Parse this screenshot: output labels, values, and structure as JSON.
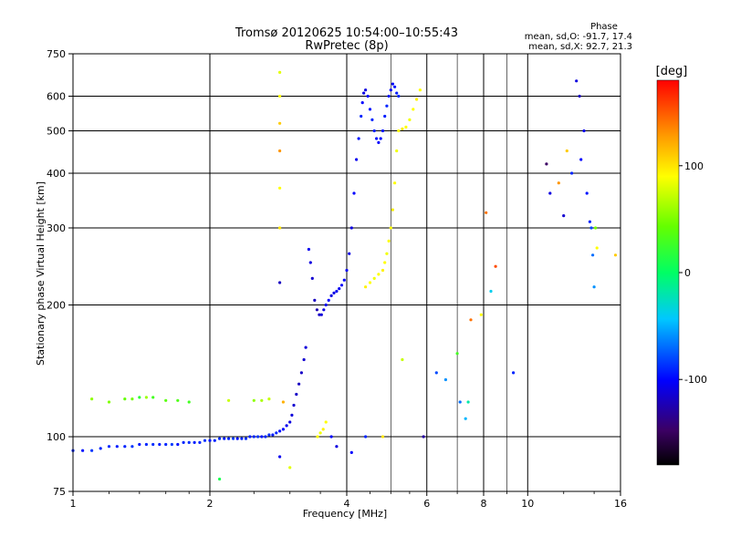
{
  "chart_data": {
    "type": "scatter",
    "title": "Tromsø 20120625 10:54:00–10:55:43",
    "subtitle": "RwPretec (8p)",
    "xlabel": "Frequency [MHz]",
    "ylabel": "Stationary phase Virtual Height [km]",
    "x_scale": "log",
    "y_scale": "log",
    "xlim": [
      1,
      16
    ],
    "ylim": [
      75,
      750
    ],
    "x_ticks": [
      1,
      2,
      4,
      6,
      8,
      10,
      16
    ],
    "y_ticks": [
      75,
      100,
      200,
      300,
      400,
      500,
      600,
      750
    ],
    "x_tick_labels": [
      "1",
      "2",
      "4",
      "6",
      "8",
      "10",
      "16"
    ],
    "y_tick_labels": [
      "75",
      "100",
      "200",
      "300",
      "400",
      "500",
      "600",
      "750"
    ],
    "grid": true,
    "phase_stats": {
      "heading": "Phase",
      "line_o": "mean, sd,O: -91.7, 17.4",
      "line_x": "mean, sd,X:  92.7, 21.3"
    },
    "colorbar": {
      "label": "[deg]",
      "range": [
        -180,
        180
      ],
      "ticks": [
        100,
        0,
        -100
      ],
      "tick_labels": [
        "100",
        "0",
        "-100"
      ],
      "colormap": "rainbow"
    },
    "traces": [
      {
        "x": [
          1.0,
          1.05,
          1.1,
          1.15,
          1.2,
          1.25,
          1.3,
          1.35,
          1.4,
          1.45,
          1.5,
          1.55,
          1.6,
          1.65,
          1.7,
          1.75,
          1.8,
          1.85,
          1.9,
          1.95,
          2.0,
          2.05,
          2.1,
          2.15,
          2.2,
          2.25,
          2.3,
          2.35,
          2.4,
          2.45,
          2.5,
          2.55,
          2.6,
          2.65,
          2.7,
          2.75,
          2.8,
          2.85,
          2.9,
          2.95,
          3.0,
          3.03,
          3.06,
          3.1,
          3.14,
          3.18,
          3.22,
          3.25
        ],
        "y": [
          93,
          93,
          93,
          94,
          95,
          95,
          95,
          95,
          96,
          96,
          96,
          96,
          96,
          96,
          96,
          97,
          97,
          97,
          97,
          98,
          98,
          98,
          99,
          99,
          99,
          99,
          99,
          99,
          99,
          100,
          100,
          100,
          100,
          100,
          101,
          101,
          102,
          103,
          104,
          106,
          108,
          112,
          118,
          125,
          132,
          140,
          150,
          160
        ],
        "phase": [
          -90,
          -95,
          -85,
          -90,
          -88,
          -92,
          -90,
          -86,
          -94,
          -90,
          -88,
          -92,
          -90,
          -84,
          -96,
          -90,
          -88,
          -92,
          -90,
          -86,
          -94,
          -90,
          -88,
          -92,
          -90,
          -84,
          -96,
          -90,
          -88,
          -92,
          -90,
          -86,
          -94,
          -90,
          -88,
          -92,
          -90,
          -95,
          -100,
          -105,
          -110,
          -112,
          -115,
          -118,
          -120,
          -118,
          -115,
          -112
        ]
      },
      {
        "x": [
          3.3,
          3.33,
          3.36,
          3.4,
          3.44,
          3.48,
          3.52,
          3.56,
          3.6,
          3.65,
          3.7,
          3.75,
          3.8,
          3.85,
          3.9,
          3.95,
          4.0,
          4.05,
          4.1,
          4.15,
          4.2,
          4.25,
          4.3,
          4.33,
          4.36,
          4.4,
          4.45,
          4.5,
          4.55,
          4.6,
          4.65,
          4.7,
          4.75,
          4.8,
          4.85,
          4.9,
          4.95,
          5.0,
          5.05,
          5.1,
          5.15,
          5.2
        ],
        "y": [
          268,
          250,
          230,
          205,
          195,
          190,
          190,
          195,
          200,
          205,
          210,
          213,
          215,
          218,
          222,
          228,
          240,
          262,
          300,
          360,
          430,
          480,
          540,
          580,
          610,
          620,
          600,
          560,
          530,
          500,
          480,
          470,
          480,
          500,
          540,
          570,
          600,
          620,
          640,
          630,
          610,
          600
        ],
        "phase": [
          -105,
          -110,
          -115,
          -120,
          -125,
          -118,
          -112,
          -110,
          -105,
          -100,
          -110,
          -108,
          -105,
          -104,
          -102,
          -100,
          -105,
          -108,
          -110,
          -100,
          -105,
          -95,
          -90,
          -100,
          -108,
          -110,
          -100,
          -95,
          -90,
          -92,
          -95,
          -100,
          -98,
          -95,
          -92,
          -90,
          -95,
          -100,
          -98,
          -95,
          -92,
          -90
        ]
      },
      {
        "x": [
          3.45,
          3.5,
          3.55,
          3.6,
          4.4,
          4.5,
          4.6,
          4.7,
          4.8,
          4.85,
          4.9,
          4.95,
          5.0,
          5.05,
          5.1,
          5.15,
          5.2,
          5.3,
          5.4,
          5.5,
          5.6,
          5.7,
          5.8
        ],
        "y": [
          100,
          102,
          104,
          108,
          220,
          225,
          230,
          235,
          240,
          250,
          262,
          280,
          300,
          330,
          380,
          450,
          500,
          505,
          510,
          530,
          560,
          590,
          620
        ],
        "phase": [
          100,
          95,
          105,
          100,
          105,
          100,
          95,
          100,
          105,
          100,
          95,
          100,
          100,
          105,
          100,
          95,
          100,
          105,
          100,
          95,
          100,
          105,
          100
        ]
      },
      {
        "x": [
          1.1,
          1.2,
          1.3,
          1.35,
          1.4,
          1.45,
          1.5,
          1.6,
          1.7,
          1.8,
          2.1,
          2.2,
          2.5,
          2.6,
          2.7,
          2.85,
          2.85,
          2.85,
          2.85,
          2.85,
          2.85,
          2.85,
          2.85,
          2.9,
          3.0,
          3.7,
          3.8,
          4.1,
          4.4,
          4.8,
          5.3,
          5.9,
          6.3,
          6.6,
          7.0,
          7.1,
          7.3,
          7.4,
          7.5,
          7.9,
          8.1,
          8.3,
          8.5,
          9.3,
          11.0,
          11.2,
          11.7,
          12.0,
          12.2,
          12.5,
          12.8,
          13.0,
          13.1,
          13.3,
          13.5,
          13.7,
          13.8,
          13.9,
          14.0,
          14.1,
          14.2,
          15.6
        ],
        "y": [
          122,
          120,
          122,
          122,
          123,
          123,
          123,
          121,
          121,
          120,
          80,
          121,
          121,
          121,
          122,
          680,
          600,
          520,
          450,
          370,
          300,
          225,
          90,
          120,
          85,
          100,
          95,
          92,
          100,
          100,
          150,
          100,
          140,
          135,
          155,
          120,
          110,
          120,
          185,
          190,
          325,
          215,
          245,
          140,
          420,
          360,
          380,
          320,
          450,
          400,
          650,
          600,
          430,
          500,
          360,
          310,
          300,
          260,
          220,
          300,
          270,
          260
        ],
        "phase": [
          60,
          55,
          45,
          50,
          20,
          65,
          30,
          40,
          35,
          30,
          10,
          80,
          60,
          70,
          80,
          90,
          100,
          120,
          140,
          100,
          110,
          -120,
          -105,
          130,
          90,
          -100,
          -110,
          -100,
          -90,
          110,
          80,
          -130,
          -80,
          -60,
          30,
          -70,
          -50,
          -20,
          150,
          100,
          150,
          -40,
          160,
          -90,
          -150,
          -110,
          140,
          -115,
          120,
          -90,
          -110,
          -120,
          -100,
          -105,
          -95,
          -90,
          -80,
          -70,
          -60,
          50,
          100,
          120
        ]
      }
    ]
  }
}
